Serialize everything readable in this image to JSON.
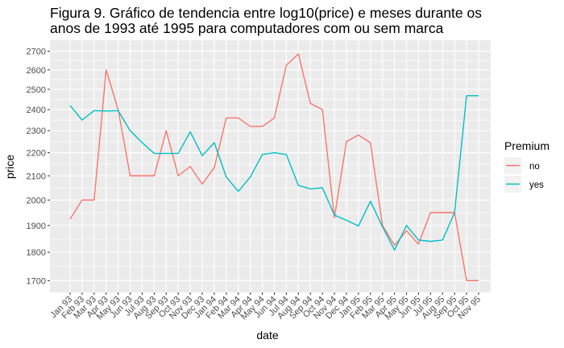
{
  "chart_data": {
    "type": "line",
    "title": "Figura 9. Gráfico de tendencia entre log10(price) e meses durante os anos de 1993 até 1995 para computadores com ou sem marca",
    "title_lines": [
      "Figura 9. Gráfico de tendencia entre log10(price) e meses durante os",
      "anos de 1993 até 1995 para computadores com ou sem marca"
    ],
    "xlabel": "date",
    "ylabel": "price",
    "y_scale": "log10",
    "ylim": [
      1660,
      2760
    ],
    "yticks": [
      1700,
      1800,
      1900,
      2000,
      2100,
      2200,
      2300,
      2400,
      2500,
      2600,
      2700
    ],
    "ytick_labels": [
      "1700",
      "1800",
      "1900",
      "2000",
      "2100",
      "2200",
      "2300",
      "2400",
      "2500",
      "2600",
      "2700"
    ],
    "categories": [
      "Jan 93",
      "Feb 93",
      "Mar 93",
      "Apr 93",
      "May 93",
      "Jun 93",
      "Jul 93",
      "Aug 93",
      "Sep 93",
      "Oct 93",
      "Nov 93",
      "Dec 93",
      "Jan 94",
      "Feb 94",
      "Mar 94",
      "Apr 94",
      "May 94",
      "Jun 94",
      "Jul 94",
      "Aug 94",
      "Sep 94",
      "Oct 94",
      "Nov 94",
      "Dec 94",
      "Jan 95",
      "Feb 95",
      "Mar 95",
      "Apr 95",
      "May 95",
      "Jun 95",
      "Jul 95",
      "Aug 95",
      "Sep 95",
      "Oct 95",
      "Nov 95"
    ],
    "grid": true,
    "legend": {
      "title": "Premium",
      "position": "right"
    },
    "series": [
      {
        "name": "no",
        "color": "#F8766D",
        "values": [
          1925,
          2000,
          2000,
          2600,
          2400,
          2100,
          2100,
          2100,
          2300,
          2100,
          2140,
          2065,
          2135,
          2360,
          2360,
          2320,
          2320,
          2360,
          2625,
          2685,
          2430,
          2400,
          1930,
          2250,
          2280,
          2245,
          1900,
          1825,
          1880,
          1830,
          1950,
          1950,
          1950,
          1700,
          1700
        ]
      },
      {
        "name": "yes",
        "color": "#00BFC4",
        "values": [
          2420,
          2350,
          2395,
          2393,
          2395,
          2300,
          2245,
          2197,
          2197,
          2197,
          2295,
          2187,
          2245,
          2095,
          2035,
          2095,
          2192,
          2200,
          2192,
          2060,
          2045,
          2050,
          1940,
          1920,
          1898,
          1995,
          1895,
          1808,
          1900,
          1845,
          1840,
          1845,
          1950,
          2468,
          2468
        ]
      }
    ]
  }
}
